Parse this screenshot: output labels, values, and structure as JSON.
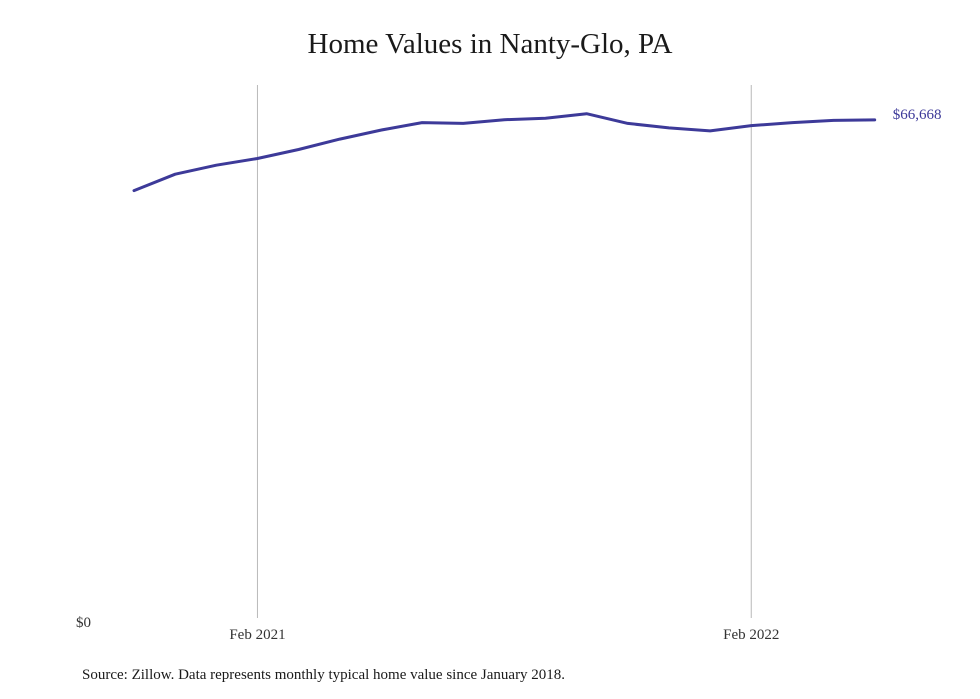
{
  "chart_data": {
    "type": "line",
    "title": "Home Values in Nanty-Glo, PA",
    "xlabel": "",
    "ylabel": "",
    "x_tick_labels": [
      "Feb 2021",
      "Feb 2022"
    ],
    "y_tick_labels": [
      "$0"
    ],
    "ylim": [
      0,
      70000
    ],
    "grid": "vertical lines at x ticks",
    "line_color": "#3d3a99",
    "series": [
      {
        "x": [
          "2020-11",
          "2020-12",
          "2021-01",
          "2021-02",
          "2021-03",
          "2021-04",
          "2021-05",
          "2021-06",
          "2021-07",
          "2021-08",
          "2021-09",
          "2021-10",
          "2021-11",
          "2021-12",
          "2022-01",
          "2022-02",
          "2022-03",
          "2022-04",
          "2022-05"
        ],
        "values": [
          57200,
          59400,
          60600,
          61500,
          62700,
          64100,
          65300,
          66300,
          66200,
          66700,
          66900,
          67500,
          66200,
          65600,
          65200,
          65900,
          66300,
          66600,
          66668
        ]
      }
    ],
    "end_label": "$66,668"
  },
  "source_note": "Source: Zillow. Data represents monthly typical home value since January 2018."
}
